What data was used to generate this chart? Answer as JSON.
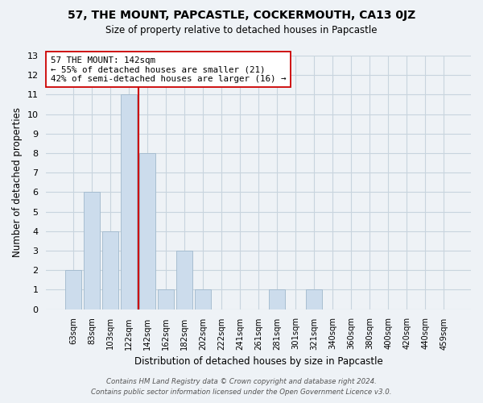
{
  "title": "57, THE MOUNT, PAPCASTLE, COCKERMOUTH, CA13 0JZ",
  "subtitle": "Size of property relative to detached houses in Papcastle",
  "xlabel": "Distribution of detached houses by size in Papcastle",
  "ylabel": "Number of detached properties",
  "bar_labels": [
    "63sqm",
    "83sqm",
    "103sqm",
    "122sqm",
    "142sqm",
    "162sqm",
    "182sqm",
    "202sqm",
    "222sqm",
    "241sqm",
    "261sqm",
    "281sqm",
    "301sqm",
    "321sqm",
    "340sqm",
    "360sqm",
    "380sqm",
    "400sqm",
    "420sqm",
    "440sqm",
    "459sqm"
  ],
  "bar_values": [
    2,
    6,
    4,
    11,
    8,
    1,
    3,
    1,
    0,
    0,
    0,
    1,
    0,
    1,
    0,
    0,
    0,
    0,
    0,
    0,
    0
  ],
  "vline_index": 3.5,
  "vline_color": "#cc0000",
  "bar_color": "#ccdcec",
  "bar_edge_color": "#a0b8cc",
  "ylim": [
    0,
    13
  ],
  "yticks": [
    0,
    1,
    2,
    3,
    4,
    5,
    6,
    7,
    8,
    9,
    10,
    11,
    12,
    13
  ],
  "annotation_title": "57 THE MOUNT: 142sqm",
  "annotation_line1": "← 55% of detached houses are smaller (21)",
  "annotation_line2": "42% of semi-detached houses are larger (16) →",
  "annotation_box_color": "#ffffff",
  "annotation_box_edge": "#cc0000",
  "grid_color": "#c8d4de",
  "background_color": "#eef2f6",
  "footer_line1": "Contains HM Land Registry data © Crown copyright and database right 2024.",
  "footer_line2": "Contains public sector information licensed under the Open Government Licence v3.0."
}
